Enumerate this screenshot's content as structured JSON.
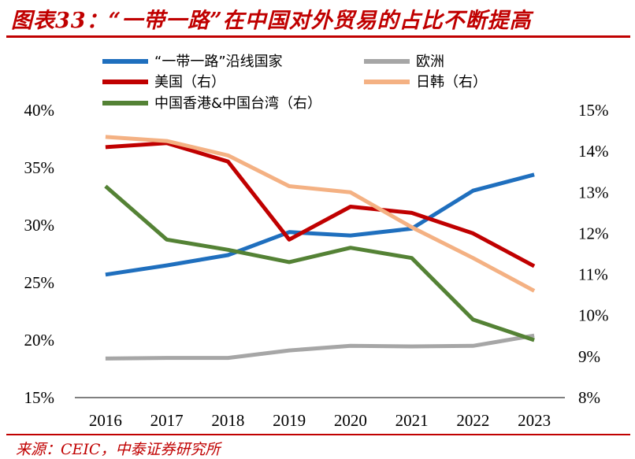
{
  "header": {
    "title": "图表33：“一带一路”在中国对外贸易的占比不断提高"
  },
  "footer": {
    "source": "来源：CEIC，中泰证券研究所"
  },
  "chart_data": {
    "type": "line",
    "categories": [
      "2016",
      "2017",
      "2018",
      "2019",
      "2020",
      "2021",
      "2022",
      "2023"
    ],
    "y_left": {
      "ticks": [
        "15%",
        "20%",
        "25%",
        "30%",
        "35%",
        "40%"
      ],
      "ylim": [
        15,
        40
      ]
    },
    "y_right": {
      "ticks": [
        "8%",
        "9%",
        "10%",
        "11%",
        "12%",
        "13%",
        "14%",
        "15%"
      ],
      "ylim": [
        8,
        15
      ]
    },
    "legend": "top",
    "grid": false,
    "series": [
      {
        "name": "“一带一路”沿线国家",
        "axis": "left",
        "color": "#1f6fbe",
        "values": [
          25.7,
          26.5,
          27.4,
          29.4,
          29.1,
          29.7,
          33.0,
          34.4
        ]
      },
      {
        "name": "欧洲",
        "axis": "left",
        "color": "#a6a6a6",
        "values": [
          18.4,
          18.45,
          18.45,
          19.1,
          19.5,
          19.45,
          19.5,
          20.4
        ]
      },
      {
        "name": "美国（右）",
        "axis": "right",
        "color": "#c00000",
        "values": [
          14.1,
          14.2,
          13.75,
          11.85,
          12.65,
          12.5,
          12.0,
          11.2
        ]
      },
      {
        "name": "日韩（右）",
        "axis": "right",
        "color": "#f4b183",
        "values": [
          14.35,
          14.25,
          13.9,
          13.15,
          13.0,
          12.15,
          11.4,
          10.6
        ]
      },
      {
        "name": "中国香港&中国台湾（右）",
        "axis": "right",
        "color": "#548235",
        "values": [
          13.15,
          11.85,
          11.6,
          11.3,
          11.65,
          11.4,
          9.9,
          9.4
        ]
      }
    ]
  }
}
